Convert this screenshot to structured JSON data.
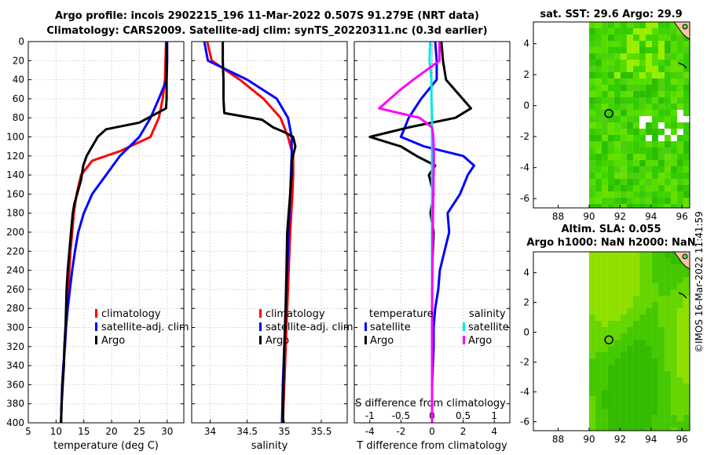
{
  "title_line1": "Argo profile: incois 2902215_196 11-Mar-2022 0.507S 91.279E (NRT data)",
  "title_line2": "Climatology: CARS2009. Satellite-adj clim: synTS_20220311.nc (0.3d earlier)",
  "footer": "©IMOS 16-Mar-2022 11:41:59",
  "colors": {
    "climatology": "#ff0000",
    "satellite": "#0000ff",
    "argo": "#000000",
    "sal_satellite": "#00e5e5",
    "sal_argo": "#ff00ff"
  },
  "chart_data": [
    {
      "id": "temperature",
      "type": "line",
      "xlabel": "temperature (deg C)",
      "ylabel": "",
      "xlim": [
        5,
        33
      ],
      "ylim": [
        400,
        0
      ],
      "xticks": [
        "5",
        "10",
        "15",
        "20",
        "25",
        "30"
      ],
      "xtick_values": [
        5,
        10,
        15,
        20,
        25,
        30
      ],
      "yticks": [
        "0",
        "20",
        "40",
        "60",
        "80",
        "100",
        "120",
        "140",
        "160",
        "180",
        "200",
        "220",
        "240",
        "260",
        "280",
        "300",
        "320",
        "340",
        "360",
        "380",
        "400"
      ],
      "ytick_values": [
        0,
        20,
        40,
        60,
        80,
        100,
        120,
        140,
        160,
        180,
        200,
        220,
        240,
        260,
        280,
        300,
        320,
        340,
        360,
        380,
        400
      ],
      "legend": [
        "climatology",
        "satellite-adj. clim",
        "Argo"
      ],
      "series": [
        {
          "name": "climatology",
          "color": "#ff0000",
          "points": [
            [
              29.8,
              0
            ],
            [
              29.7,
              20
            ],
            [
              29.6,
              40
            ],
            [
              29.2,
              60
            ],
            [
              28.5,
              80
            ],
            [
              27.0,
              100
            ],
            [
              21.5,
              115
            ],
            [
              16.5,
              125
            ],
            [
              14.5,
              140
            ],
            [
              13.7,
              160
            ],
            [
              13.2,
              180
            ],
            [
              12.9,
              200
            ],
            [
              12.6,
              220
            ],
            [
              12.4,
              240
            ],
            [
              12.2,
              260
            ],
            [
              11.9,
              280
            ],
            [
              11.7,
              300
            ],
            [
              11.5,
              320
            ],
            [
              11.4,
              340
            ],
            [
              11.2,
              360
            ],
            [
              11.0,
              380
            ],
            [
              10.9,
              400
            ]
          ]
        },
        {
          "name": "satellite-adj. clim",
          "color": "#0000ff",
          "points": [
            [
              30.0,
              0
            ],
            [
              30.0,
              20
            ],
            [
              29.9,
              40
            ],
            [
              28.5,
              60
            ],
            [
              27.0,
              80
            ],
            [
              25.0,
              100
            ],
            [
              21.5,
              120
            ],
            [
              19.0,
              140
            ],
            [
              16.5,
              160
            ],
            [
              15.0,
              180
            ],
            [
              14.0,
              200
            ],
            [
              13.4,
              220
            ],
            [
              12.9,
              240
            ],
            [
              12.5,
              260
            ],
            [
              12.1,
              280
            ],
            [
              11.8,
              300
            ],
            [
              11.6,
              320
            ],
            [
              11.3,
              340
            ],
            [
              11.1,
              360
            ],
            [
              11.0,
              380
            ],
            [
              10.9,
              400
            ]
          ]
        },
        {
          "name": "Argo",
          "color": "#000000",
          "points": [
            [
              29.9,
              0
            ],
            [
              29.9,
              20
            ],
            [
              29.9,
              40
            ],
            [
              29.9,
              60
            ],
            [
              29.8,
              70
            ],
            [
              25.0,
              85
            ],
            [
              19.0,
              92
            ],
            [
              17.5,
              100
            ],
            [
              16.5,
              110
            ],
            [
              15.5,
              120
            ],
            [
              14.9,
              130
            ],
            [
              14.5,
              145
            ],
            [
              13.8,
              160
            ],
            [
              13.3,
              170
            ],
            [
              13.0,
              180
            ],
            [
              12.7,
              200
            ],
            [
              12.4,
              220
            ],
            [
              12.1,
              240
            ],
            [
              11.9,
              260
            ],
            [
              11.8,
              280
            ],
            [
              11.7,
              300
            ],
            [
              11.5,
              320
            ],
            [
              11.4,
              340
            ],
            [
              11.2,
              360
            ],
            [
              11.0,
              380
            ],
            [
              10.9,
              400
            ]
          ]
        }
      ]
    },
    {
      "id": "salinity",
      "type": "line",
      "xlabel": "salinity",
      "ylabel": "",
      "xlim": [
        33.75,
        35.85
      ],
      "ylim": [
        400,
        0
      ],
      "xticks": [
        "34",
        "34.5",
        "35",
        "35.5"
      ],
      "xtick_values": [
        34,
        34.5,
        35,
        35.5
      ],
      "legend": [
        "climatology",
        "satellite-adj. clim",
        "Argo"
      ],
      "series": [
        {
          "name": "climatology",
          "color": "#ff0000",
          "points": [
            [
              33.96,
              0
            ],
            [
              34.02,
              20
            ],
            [
              34.4,
              40
            ],
            [
              34.72,
              60
            ],
            [
              34.95,
              80
            ],
            [
              35.05,
              100
            ],
            [
              35.12,
              120
            ],
            [
              35.12,
              140
            ],
            [
              35.11,
              160
            ],
            [
              35.08,
              200
            ],
            [
              35.06,
              240
            ],
            [
              35.04,
              280
            ],
            [
              35.02,
              320
            ],
            [
              35.0,
              360
            ],
            [
              34.98,
              400
            ]
          ]
        },
        {
          "name": "satellite-adj. clim",
          "color": "#0000ff",
          "points": [
            [
              33.92,
              0
            ],
            [
              33.97,
              20
            ],
            [
              34.5,
              40
            ],
            [
              34.9,
              60
            ],
            [
              35.05,
              80
            ],
            [
              35.1,
              100
            ],
            [
              35.1,
              120
            ],
            [
              35.09,
              140
            ],
            [
              35.08,
              160
            ],
            [
              35.06,
              200
            ],
            [
              35.04,
              240
            ],
            [
              35.02,
              280
            ],
            [
              35.0,
              320
            ],
            [
              34.98,
              360
            ],
            [
              34.97,
              400
            ]
          ]
        },
        {
          "name": "Argo",
          "color": "#000000",
          "points": [
            [
              34.17,
              0
            ],
            [
              34.17,
              20
            ],
            [
              34.18,
              40
            ],
            [
              34.18,
              60
            ],
            [
              34.19,
              75
            ],
            [
              34.7,
              82
            ],
            [
              34.85,
              90
            ],
            [
              35.0,
              95
            ],
            [
              35.12,
              100
            ],
            [
              35.15,
              110
            ],
            [
              35.1,
              125
            ],
            [
              35.1,
              140
            ],
            [
              35.08,
              160
            ],
            [
              35.06,
              180
            ],
            [
              35.04,
              200
            ],
            [
              35.03,
              240
            ],
            [
              35.02,
              280
            ],
            [
              35.0,
              320
            ],
            [
              34.99,
              360
            ],
            [
              34.98,
              400
            ]
          ]
        }
      ]
    },
    {
      "id": "difference",
      "type": "line",
      "xlabel": "T difference from climatology",
      "top_label": "S difference from climatology",
      "xlim": [
        -5,
        5
      ],
      "ylim": [
        400,
        0
      ],
      "xticks": [
        "-4",
        "-2",
        "0",
        "2",
        "4"
      ],
      "xtick_values": [
        -4,
        -2,
        0,
        2,
        4
      ],
      "top_xlim": [
        -1.25,
        1.25
      ],
      "top_xticks": [
        "-1",
        "-0.5",
        "0",
        "0.5",
        "1"
      ],
      "top_xtick_values": [
        -1,
        -0.5,
        0,
        0.5,
        1
      ],
      "legend_headers": [
        "temperature",
        "salinity"
      ],
      "legend_left": [
        "satellite",
        "Argo"
      ],
      "legend_right": [
        "satellite",
        "Argo"
      ],
      "series": [
        {
          "name": "T satellite",
          "color": "#0000ff",
          "points": [
            [
              0.2,
              0
            ],
            [
              0.3,
              20
            ],
            [
              0.3,
              40
            ],
            [
              -0.7,
              60
            ],
            [
              -1.5,
              80
            ],
            [
              -2.0,
              100
            ],
            [
              -0.5,
              110
            ],
            [
              2.0,
              120
            ],
            [
              2.7,
              130
            ],
            [
              2.3,
              140
            ],
            [
              1.8,
              160
            ],
            [
              1.0,
              180
            ],
            [
              1.1,
              200
            ],
            [
              0.8,
              220
            ],
            [
              0.5,
              240
            ],
            [
              0.4,
              260
            ],
            [
              0.2,
              280
            ],
            [
              0.1,
              300
            ],
            [
              0.1,
              320
            ],
            [
              0.0,
              360
            ],
            [
              0.0,
              400
            ]
          ]
        },
        {
          "name": "T Argo",
          "color": "#000000",
          "points": [
            [
              0.6,
              0
            ],
            [
              0.7,
              20
            ],
            [
              0.9,
              40
            ],
            [
              2.5,
              70
            ],
            [
              1.5,
              80
            ],
            [
              -1.5,
              90
            ],
            [
              -4.0,
              100
            ],
            [
              -2.0,
              110
            ],
            [
              -1.0,
              120
            ],
            [
              0.2,
              130
            ],
            [
              -0.2,
              140
            ],
            [
              0.1,
              160
            ],
            [
              -0.1,
              180
            ],
            [
              0.1,
              200
            ],
            [
              0.0,
              240
            ],
            [
              0.0,
              280
            ],
            [
              0.0,
              320
            ],
            [
              0.0,
              360
            ],
            [
              0.0,
              400
            ]
          ]
        },
        {
          "name": "S satellite",
          "color": "#00e5e5",
          "points": [
            [
              -0.03,
              0
            ],
            [
              -0.04,
              20
            ],
            [
              -0.01,
              40
            ],
            [
              -0.01,
              60
            ],
            [
              0.0,
              80
            ],
            [
              0.0,
              100
            ],
            [
              0.0,
              140
            ],
            [
              0.0,
              200
            ],
            [
              0.0,
              280
            ],
            [
              0.0,
              400
            ]
          ]
        },
        {
          "name": "S Argo",
          "color": "#ff00ff",
          "points": [
            [
              0.12,
              0
            ],
            [
              0.12,
              20
            ],
            [
              -0.3,
              40
            ],
            [
              -0.5,
              50
            ],
            [
              -0.85,
              70
            ],
            [
              -0.2,
              80
            ],
            [
              0.0,
              90
            ],
            [
              0.02,
              100
            ],
            [
              0.03,
              120
            ],
            [
              0.02,
              160
            ],
            [
              0.01,
              200
            ],
            [
              0.0,
              280
            ],
            [
              0.0,
              400
            ]
          ]
        }
      ]
    }
  ],
  "maps": [
    {
      "id": "sst-map",
      "title": "sat. SST: 29.6 Argo: 29.9",
      "xticks": [
        "88",
        "90",
        "92",
        "94",
        "96"
      ],
      "yticks": [
        "4",
        "2",
        "0",
        "-2",
        "-4",
        "-6"
      ]
    },
    {
      "id": "sla-map",
      "title_line1": "Altim. SLA: 0.055",
      "title_line2": "Argo h1000: NaN h2000: NaN",
      "xticks": [
        "88",
        "90",
        "92",
        "94",
        "96"
      ],
      "yticks": [
        "4",
        "2",
        "0",
        "-2",
        "-4",
        "-6"
      ]
    }
  ],
  "map_extent": {
    "lon": [
      86.4,
      96.5
    ],
    "lat": [
      -6.6,
      5.4
    ]
  },
  "float_position": {
    "lon": 91.279,
    "lat": -0.507
  }
}
